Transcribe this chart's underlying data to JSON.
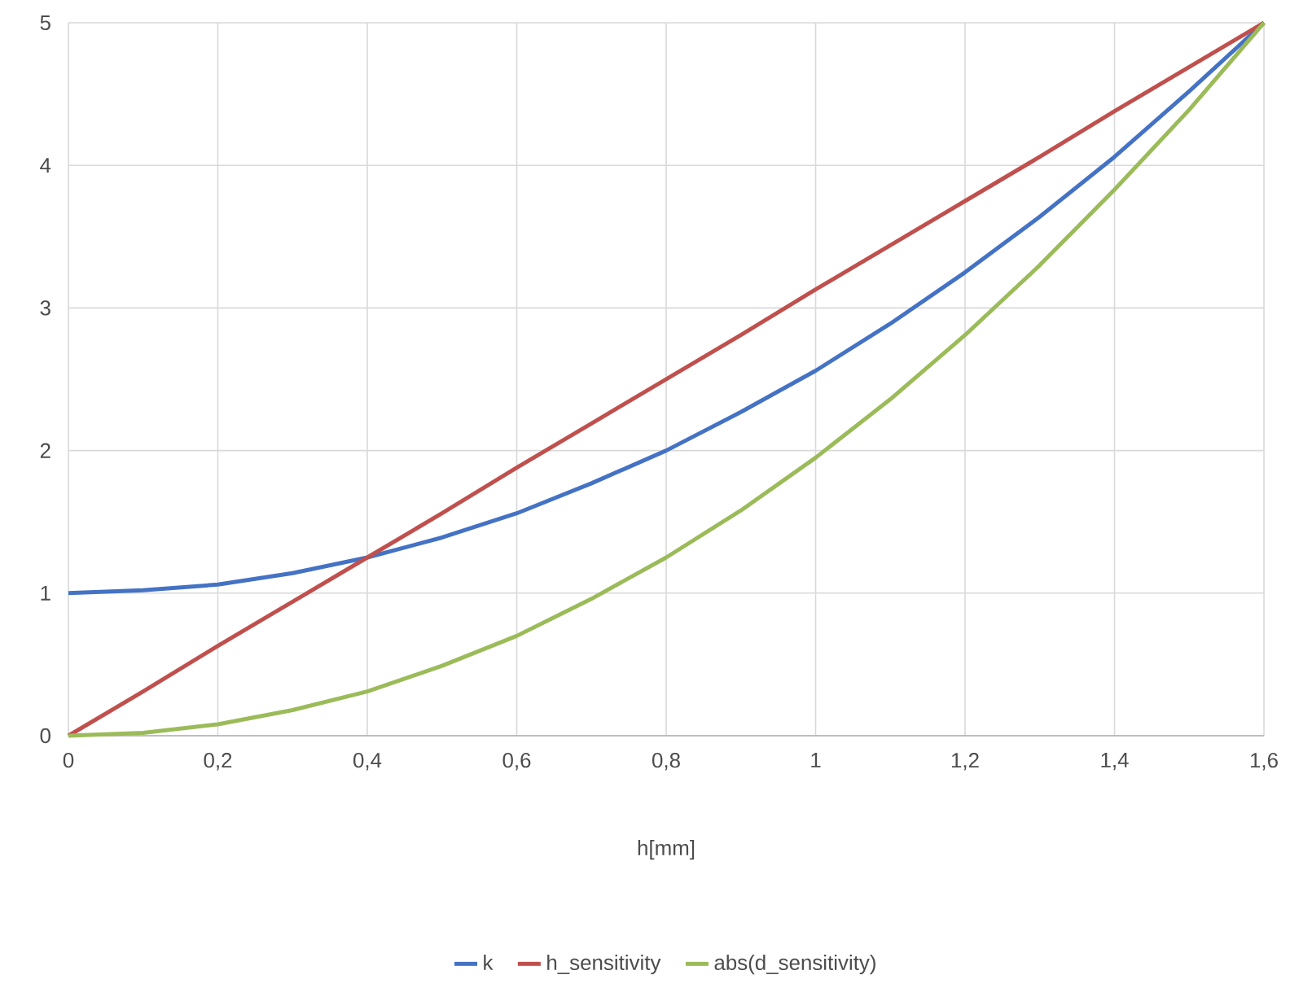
{
  "chart_data": {
    "type": "line",
    "xlabel": "h[mm]",
    "x": [
      0,
      0.1,
      0.2,
      0.3,
      0.4,
      0.5,
      0.6,
      0.7,
      0.8,
      0.9,
      1.0,
      1.1,
      1.2,
      1.3,
      1.4,
      1.5,
      1.6
    ],
    "series": [
      {
        "name": "k",
        "color": "#4472c4",
        "values": [
          1.0,
          1.02,
          1.06,
          1.14,
          1.25,
          1.39,
          1.56,
          1.77,
          2.0,
          2.27,
          2.56,
          2.89,
          3.25,
          3.64,
          4.06,
          4.52,
          5.0
        ]
      },
      {
        "name": "h_sensitivity",
        "color": "#c0504d",
        "values": [
          0,
          0.31,
          0.63,
          0.94,
          1.25,
          1.56,
          1.88,
          2.19,
          2.5,
          2.81,
          3.13,
          3.44,
          3.75,
          4.06,
          4.38,
          4.69,
          5.0
        ]
      },
      {
        "name": "abs(d_sensitivity)",
        "color": "#9bbb59",
        "values": [
          0,
          0.02,
          0.08,
          0.18,
          0.31,
          0.49,
          0.7,
          0.96,
          1.25,
          1.58,
          1.95,
          2.36,
          2.81,
          3.3,
          3.83,
          4.39,
          5.0
        ]
      }
    ],
    "xlim": [
      0,
      1.6
    ],
    "xticks": [
      0,
      {
        "value": 0.2,
        "label": "0,2"
      },
      {
        "value": 0.4,
        "label": "0,4"
      },
      {
        "value": 0.6,
        "label": "0,6"
      },
      {
        "value": 0.8,
        "label": "0,8"
      },
      1,
      {
        "value": 1.2,
        "label": "1,2"
      },
      {
        "value": 1.4,
        "label": "1,4"
      },
      {
        "value": 1.6,
        "label": "1,6"
      }
    ],
    "ylim": [
      0,
      5
    ],
    "yticks": [
      0,
      1,
      2,
      3,
      4,
      5
    ],
    "grid": true,
    "legend": "bottom",
    "marker": "none",
    "line_style": "solid"
  }
}
